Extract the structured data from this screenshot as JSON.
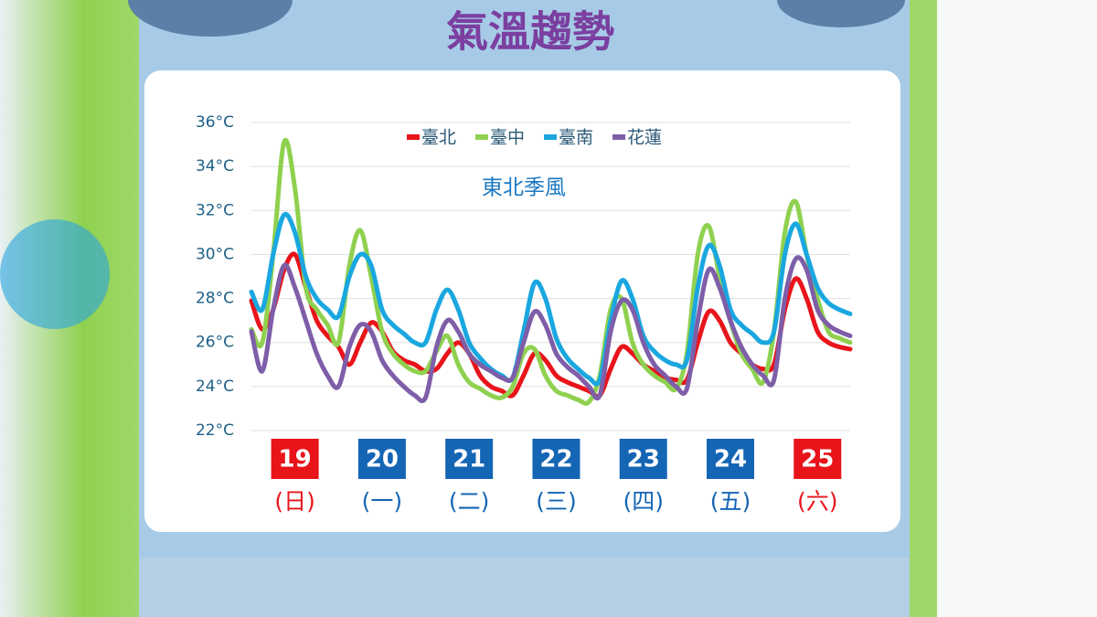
{
  "chart_data": {
    "type": "line",
    "title": "氣溫趨勢",
    "annotation": "東北季風",
    "ylim": [
      22,
      36
    ],
    "yticks": [
      {
        "value": 22,
        "label": "22°C"
      },
      {
        "value": 24,
        "label": "24°C"
      },
      {
        "value": 26,
        "label": "26°C"
      },
      {
        "value": 28,
        "label": "28°C"
      },
      {
        "value": 30,
        "label": "30°C"
      },
      {
        "value": 32,
        "label": "32°C"
      },
      {
        "value": 34,
        "label": "34°C"
      },
      {
        "value": 36,
        "label": "36°C"
      }
    ],
    "grid": true,
    "legend": "top",
    "days": [
      {
        "date": "19",
        "weekday": "(日)",
        "color": "#e8141a"
      },
      {
        "date": "20",
        "weekday": "(一)",
        "color": "#1565b5"
      },
      {
        "date": "21",
        "weekday": "(二)",
        "color": "#1565b5"
      },
      {
        "date": "22",
        "weekday": "(三)",
        "color": "#1565b5"
      },
      {
        "date": "23",
        "weekday": "(四)",
        "color": "#1565b5"
      },
      {
        "date": "24",
        "weekday": "(五)",
        "color": "#1565b5"
      },
      {
        "date": "25",
        "weekday": "(六)",
        "color": "#e8141a"
      }
    ],
    "series": [
      {
        "name": "臺北",
        "color": "#e8141a",
        "values": [
          27.9,
          26.6,
          27.5,
          29.3,
          30.0,
          28.5,
          27.0,
          26.3,
          25.8,
          25.0,
          26.0,
          26.9,
          26.5,
          25.6,
          25.2,
          25.0,
          24.7,
          24.8,
          25.5,
          26.0,
          25.5,
          24.5,
          24.0,
          23.8,
          23.6,
          24.5,
          25.5,
          25.2,
          24.5,
          24.2,
          24.0,
          23.8,
          23.6,
          24.8,
          25.8,
          25.5,
          25.0,
          24.7,
          24.4,
          24.3,
          24.3,
          26.0,
          27.4,
          27.0,
          26.0,
          25.5,
          25.0,
          24.8,
          25.0,
          27.5,
          28.9,
          28.0,
          26.5,
          26.0,
          25.8,
          25.7
        ]
      },
      {
        "name": "臺中",
        "color": "#8fd14f",
        "values": [
          26.6,
          26.0,
          30.0,
          35.1,
          33.0,
          28.5,
          27.5,
          26.8,
          26.0,
          29.5,
          31.1,
          29.0,
          26.5,
          25.5,
          25.0,
          24.7,
          24.7,
          25.6,
          26.3,
          25.0,
          24.2,
          23.9,
          23.6,
          23.5,
          24.0,
          25.5,
          25.7,
          24.5,
          23.8,
          23.6,
          23.4,
          23.3,
          24.5,
          27.5,
          28.0,
          26.0,
          25.0,
          24.5,
          24.2,
          23.9,
          25.5,
          30.0,
          31.3,
          29.0,
          27.0,
          25.5,
          24.8,
          24.2,
          26.5,
          31.0,
          32.4,
          30.0,
          28.0,
          26.5,
          26.2,
          26.0
        ]
      },
      {
        "name": "臺南",
        "color": "#1aa7e0",
        "values": [
          28.3,
          27.5,
          30.0,
          31.8,
          31.0,
          29.0,
          28.0,
          27.5,
          27.2,
          29.0,
          30.0,
          29.5,
          27.5,
          26.8,
          26.4,
          26.0,
          26.0,
          27.5,
          28.4,
          27.5,
          26.0,
          25.3,
          24.8,
          24.5,
          24.4,
          26.5,
          28.7,
          28.0,
          26.2,
          25.3,
          24.8,
          24.4,
          24.3,
          27.0,
          28.8,
          28.0,
          26.3,
          25.6,
          25.2,
          25.0,
          25.2,
          28.5,
          30.4,
          29.5,
          27.5,
          26.8,
          26.4,
          26.0,
          26.5,
          30.0,
          31.4,
          30.0,
          28.5,
          27.8,
          27.5,
          27.3
        ]
      },
      {
        "name": "花蓮",
        "color": "#7e5ea8",
        "values": [
          26.5,
          24.7,
          27.5,
          29.5,
          28.5,
          27.0,
          25.5,
          24.5,
          24.0,
          25.8,
          26.8,
          26.5,
          25.2,
          24.5,
          24.0,
          23.6,
          23.5,
          25.8,
          27.0,
          26.5,
          25.5,
          25.0,
          24.7,
          24.4,
          24.4,
          26.0,
          27.4,
          26.8,
          25.5,
          24.9,
          24.5,
          24.0,
          23.6,
          26.5,
          27.9,
          27.5,
          26.0,
          25.0,
          24.5,
          24.0,
          23.9,
          27.0,
          29.3,
          28.5,
          27.0,
          25.8,
          25.0,
          24.5,
          24.3,
          28.0,
          29.8,
          29.3,
          27.5,
          26.8,
          26.5,
          26.3
        ]
      }
    ]
  }
}
